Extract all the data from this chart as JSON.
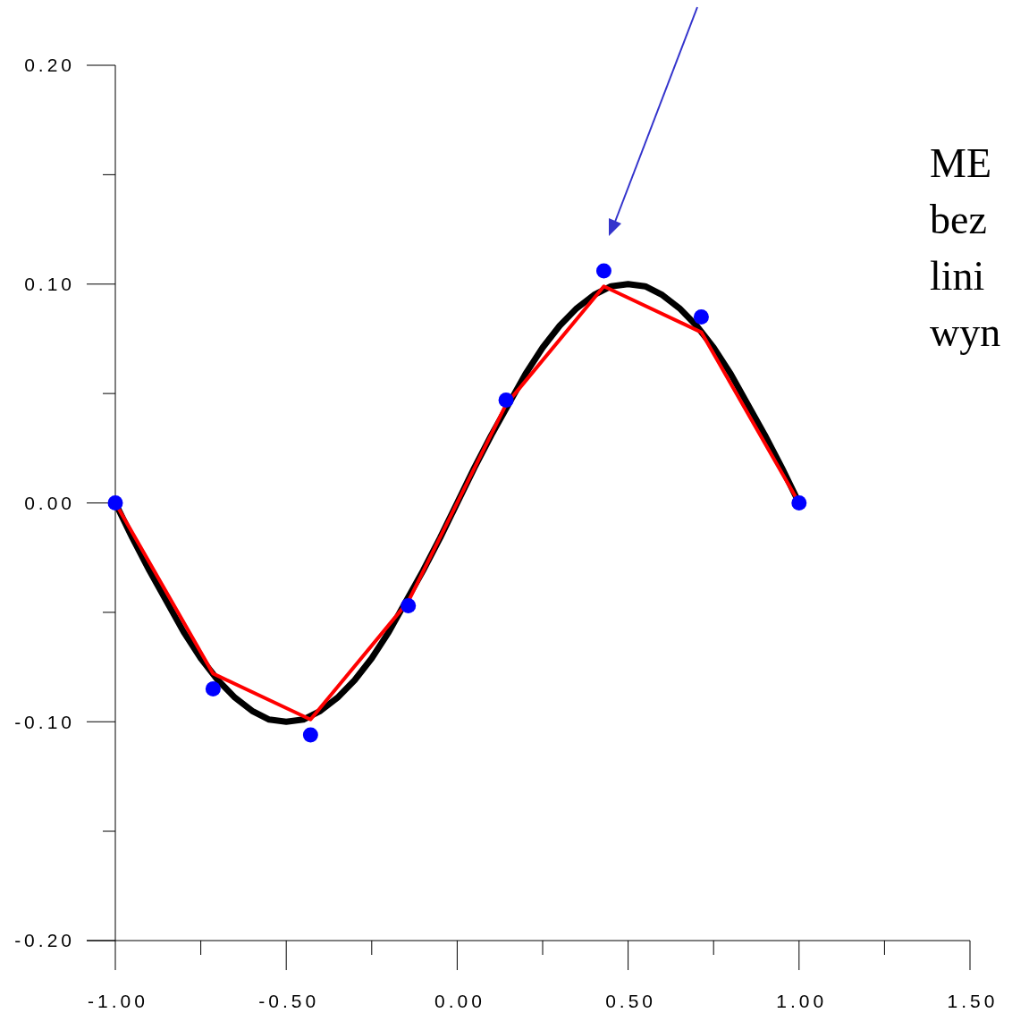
{
  "chart_data": {
    "type": "line",
    "xlim": [
      -1,
      1.5
    ],
    "ylim": [
      -0.2,
      0.2
    ],
    "xticks": [
      {
        "value": -1,
        "label": "-1.00"
      },
      {
        "value": -0.75,
        "label": null
      },
      {
        "value": -0.5,
        "label": "-0.50"
      },
      {
        "value": -0.25,
        "label": null
      },
      {
        "value": 0,
        "label": "0.00"
      },
      {
        "value": 0.25,
        "label": null
      },
      {
        "value": 0.5,
        "label": "0.50"
      },
      {
        "value": 0.75,
        "label": null
      },
      {
        "value": 1,
        "label": "1.00"
      },
      {
        "value": 1.25,
        "label": null
      },
      {
        "value": 1.5,
        "label": "1.50"
      }
    ],
    "yticks": [
      {
        "value": -0.2,
        "label": "-0.20"
      },
      {
        "value": -0.15,
        "label": null
      },
      {
        "value": -0.1,
        "label": "-0.10"
      },
      {
        "value": -0.05,
        "label": null
      },
      {
        "value": 0,
        "label": "0.00"
      },
      {
        "value": 0.05,
        "label": null
      },
      {
        "value": 0.1,
        "label": "0.10"
      },
      {
        "value": 0.15,
        "label": null
      },
      {
        "value": 0.2,
        "label": "0.20"
      }
    ],
    "grid": false,
    "annotations": [
      "ME\nbez\nlini\nwyn"
    ],
    "series": [
      {
        "color": "#000000",
        "x": [
          -1,
          -0.95,
          -0.9,
          -0.85,
          -0.8,
          -0.75,
          -0.7,
          -0.65,
          -0.6,
          -0.55,
          -0.5,
          -0.45,
          -0.4,
          -0.35,
          -0.3,
          -0.25,
          -0.2,
          -0.15,
          -0.1,
          -0.05,
          0,
          0.05,
          0.1,
          0.15,
          0.2,
          0.25,
          0.3,
          0.35,
          0.4,
          0.45,
          0.5,
          0.55,
          0.6,
          0.65,
          0.7,
          0.75,
          0.8,
          0.85,
          0.9,
          0.95,
          1
        ],
        "values": [
          0,
          -0.016,
          -0.031,
          -0.045,
          -0.059,
          -0.071,
          -0.081,
          -0.089,
          -0.095,
          -0.099,
          -0.1,
          -0.099,
          -0.095,
          -0.089,
          -0.081,
          -0.071,
          -0.059,
          -0.045,
          -0.031,
          -0.016,
          0,
          0.016,
          0.031,
          0.045,
          0.059,
          0.071,
          0.081,
          0.089,
          0.095,
          0.099,
          0.1,
          0.099,
          0.095,
          0.089,
          0.081,
          0.071,
          0.059,
          0.045,
          0.031,
          0.016,
          0
        ]
      },
      {
        "color": "#ff0000",
        "x": [
          -1,
          -0.714,
          -0.429,
          -0.143,
          0.143,
          0.429,
          0.714,
          1
        ],
        "values": [
          0,
          -0.078,
          -0.099,
          -0.045,
          0.045,
          0.099,
          0.078,
          0
        ]
      },
      {
        "type": "scatter",
        "color": "#0000ff",
        "marker": "circle",
        "x": [
          -1,
          -0.714,
          -0.429,
          -0.143,
          0.143,
          0.429,
          0.714,
          1
        ],
        "values": [
          0,
          -0.085,
          -0.106,
          -0.047,
          0.047,
          0.106,
          0.085,
          0
        ]
      }
    ]
  }
}
